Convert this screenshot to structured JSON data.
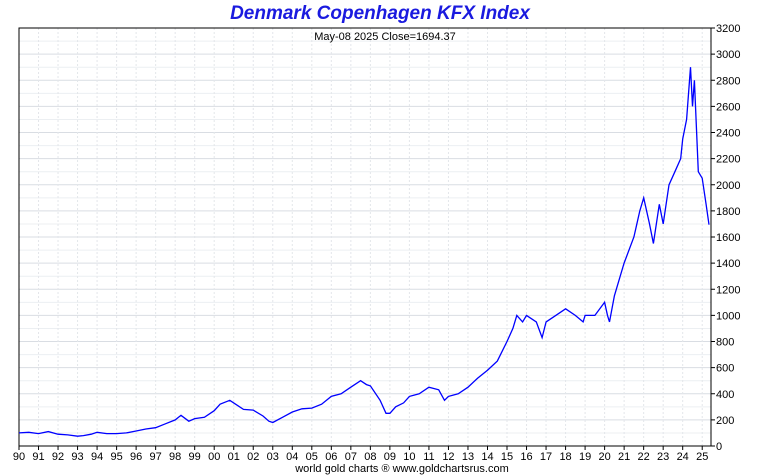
{
  "chart_data": {
    "type": "line",
    "title": "Denmark Copenhagen KFX Index",
    "subtitle": "May-08  2025   Close=1694.37",
    "footer": "world gold charts ® www.goldchartsrus.com",
    "xlabel": "",
    "ylabel": "",
    "ylim": [
      0,
      3200
    ],
    "yticks": [
      0,
      200,
      400,
      600,
      800,
      1000,
      1200,
      1400,
      1600,
      1800,
      2000,
      2200,
      2400,
      2600,
      2800,
      3000,
      3200
    ],
    "xlim": [
      1990.0,
      2025.45
    ],
    "xtick_labels": [
      "90",
      "91",
      "92",
      "93",
      "94",
      "95",
      "96",
      "97",
      "98",
      "99",
      "00",
      "01",
      "02",
      "03",
      "04",
      "05",
      "06",
      "07",
      "08",
      "09",
      "10",
      "11",
      "12",
      "13",
      "14",
      "15",
      "16",
      "17",
      "18",
      "19",
      "20",
      "21",
      "22",
      "23",
      "24",
      "25"
    ],
    "grid": true,
    "line_color": "#0000ff",
    "series": [
      {
        "name": "",
        "x": [
          1990.0,
          1990.5,
          1991.0,
          1991.5,
          1992.0,
          1992.5,
          1993.0,
          1993.3,
          1993.7,
          1994.0,
          1994.5,
          1995.0,
          1995.5,
          1996.0,
          1996.5,
          1997.0,
          1997.5,
          1998.0,
          1998.3,
          1998.7,
          1999.0,
          1999.5,
          2000.0,
          2000.3,
          2000.8,
          2001.0,
          2001.5,
          2002.0,
          2002.5,
          2002.8,
          2003.0,
          2003.5,
          2004.0,
          2004.5,
          2005.0,
          2005.5,
          2006.0,
          2006.5,
          2007.0,
          2007.5,
          2007.8,
          2008.0,
          2008.5,
          2008.8,
          2009.0,
          2009.3,
          2009.7,
          2010.0,
          2010.5,
          2011.0,
          2011.5,
          2011.8,
          2012.0,
          2012.5,
          2013.0,
          2013.5,
          2014.0,
          2014.5,
          2015.0,
          2015.3,
          2015.5,
          2015.8,
          2016.0,
          2016.5,
          2016.8,
          2017.0,
          2017.5,
          2018.0,
          2018.5,
          2018.9,
          2019.0,
          2019.5,
          2020.0,
          2020.15,
          2020.25,
          2020.5,
          2020.8,
          2021.0,
          2021.5,
          2021.8,
          2022.0,
          2022.3,
          2022.5,
          2022.8,
          2023.0,
          2023.3,
          2023.6,
          2023.9,
          2024.0,
          2024.2,
          2024.4,
          2024.5,
          2024.6,
          2024.8,
          2025.0,
          2025.2,
          2025.35
        ],
        "values": [
          100,
          105,
          95,
          110,
          90,
          85,
          75,
          80,
          90,
          105,
          95,
          95,
          100,
          115,
          130,
          140,
          170,
          200,
          235,
          190,
          210,
          220,
          270,
          320,
          350,
          330,
          280,
          275,
          230,
          190,
          180,
          220,
          260,
          285,
          290,
          320,
          380,
          400,
          450,
          500,
          470,
          460,
          350,
          250,
          250,
          300,
          330,
          380,
          400,
          450,
          430,
          350,
          380,
          400,
          450,
          520,
          580,
          650,
          800,
          900,
          1000,
          950,
          1000,
          950,
          830,
          950,
          1000,
          1050,
          1000,
          950,
          1000,
          1000,
          1100,
          1000,
          950,
          1150,
          1300,
          1400,
          1600,
          1800,
          1900,
          1700,
          1550,
          1850,
          1700,
          2000,
          2100,
          2200,
          2350,
          2500,
          2900,
          2600,
          2800,
          2100,
          2050,
          1850,
          1694
        ]
      }
    ]
  }
}
